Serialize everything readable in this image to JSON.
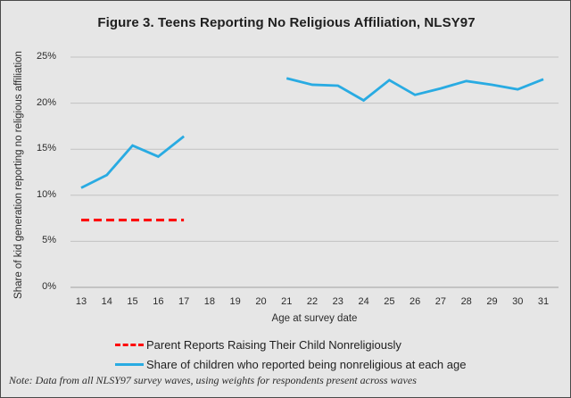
{
  "figure": {
    "title": "Figure 3. Teens Reporting No Religious Affiliation, NLSY97",
    "note": "Note: Data from all NLSY97 survey waves, using weights for respondents present across waves"
  },
  "colors": {
    "background": "#e6e6e6",
    "border": "#4a4a4a",
    "gridline": "#c2c2c2",
    "baseline": "#a0a0a0",
    "text": "#2b2b2b",
    "parent_series": "#fe0000",
    "child_series": "#29abe2"
  },
  "legend": {
    "items": [
      {
        "label": "Parent Reports Raising Their Child Nonreligiously",
        "style": "dashed",
        "color": "#fe0000"
      },
      {
        "label": "Share of children who reported being nonreligious at each age",
        "style": "solid",
        "color": "#29abe2"
      }
    ]
  },
  "chart_data": {
    "type": "line",
    "title": "Figure 3. Teens Reporting No Religious Affiliation, NLSY97",
    "xlabel": "Age at survey date",
    "ylabel": "Share of kid generation reporting no religious affiliation",
    "x_ticks": [
      13,
      14,
      15,
      16,
      17,
      18,
      19,
      20,
      21,
      22,
      23,
      24,
      25,
      26,
      27,
      28,
      29,
      30,
      31
    ],
    "xlim": [
      13,
      31
    ],
    "ylim": [
      0,
      25
    ],
    "y_ticks": [
      0,
      5,
      10,
      15,
      20,
      25
    ],
    "y_tick_suffix": "%",
    "grid": "horizontal",
    "legend_position": "bottom",
    "series": [
      {
        "name": "Parent Reports Raising Their Child Nonreligiously",
        "color": "#fe0000",
        "dash": true,
        "segments": [
          [
            [
              13,
              7.3
            ],
            [
              17,
              7.3
            ]
          ]
        ]
      },
      {
        "name": "Share of children who reported being nonreligious at each age",
        "color": "#29abe2",
        "dash": false,
        "segments": [
          [
            [
              13,
              10.8
            ],
            [
              14,
              12.2
            ],
            [
              15,
              15.4
            ],
            [
              16,
              14.2
            ],
            [
              17,
              16.4
            ]
          ],
          [
            [
              21,
              22.7
            ],
            [
              22,
              22.0
            ],
            [
              23,
              21.9
            ],
            [
              24,
              20.3
            ],
            [
              25,
              22.5
            ],
            [
              26,
              20.9
            ],
            [
              27,
              21.6
            ],
            [
              28,
              22.4
            ],
            [
              29,
              22.0
            ],
            [
              30,
              21.5
            ],
            [
              31,
              22.6
            ]
          ]
        ]
      }
    ]
  }
}
